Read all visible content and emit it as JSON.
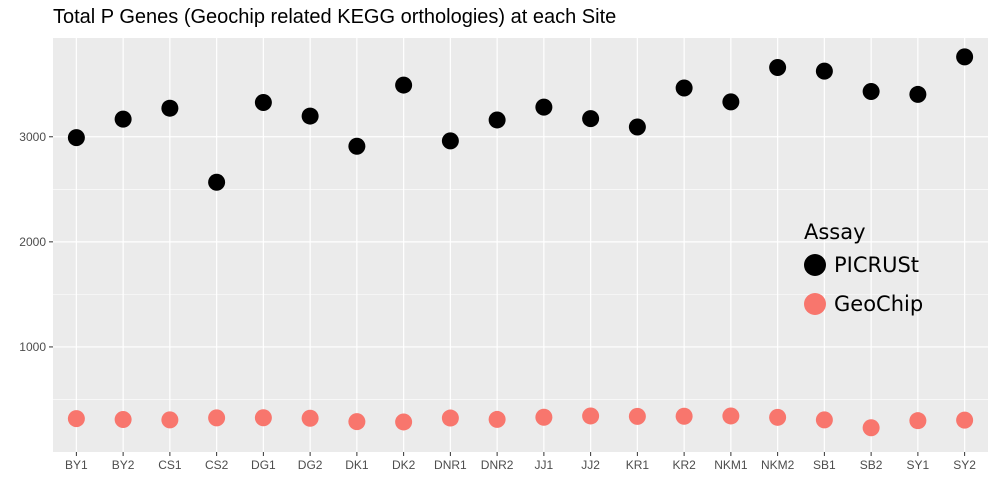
{
  "chart_data": {
    "type": "scatter",
    "title": "Total P Genes (Geochip related KEGG orthologies) at each Site",
    "xlabel": "",
    "ylabel": "",
    "categories": [
      "BY1",
      "BY2",
      "CS1",
      "CS2",
      "DG1",
      "DG2",
      "DK1",
      "DK2",
      "DNR1",
      "DNR2",
      "JJ1",
      "JJ2",
      "KR1",
      "KR2",
      "NKM1",
      "NKM2",
      "SB1",
      "SB2",
      "SY1",
      "SY2"
    ],
    "ylim": [
      0,
      3940
    ],
    "yticks": [
      1000,
      2000,
      3000
    ],
    "ytick_labels": [
      "1000",
      "2000",
      "3000"
    ],
    "grid": true,
    "legend": {
      "title": "Assay",
      "placement": "right-inside"
    },
    "series": [
      {
        "name": "PICRUSt",
        "color": "#000000",
        "values": [
          2992,
          3168,
          3272,
          2567,
          3326,
          3197,
          2910,
          3492,
          2961,
          3160,
          3282,
          3173,
          3093,
          3464,
          3332,
          3659,
          3625,
          3431,
          3403,
          3760
        ]
      },
      {
        "name": "GeoChip",
        "color": "#F8766D",
        "values": [
          318,
          309,
          306,
          325,
          326,
          321,
          289,
          286,
          323,
          310,
          331,
          343,
          339,
          340,
          343,
          330,
          306,
          231,
          298,
          303
        ]
      }
    ]
  }
}
